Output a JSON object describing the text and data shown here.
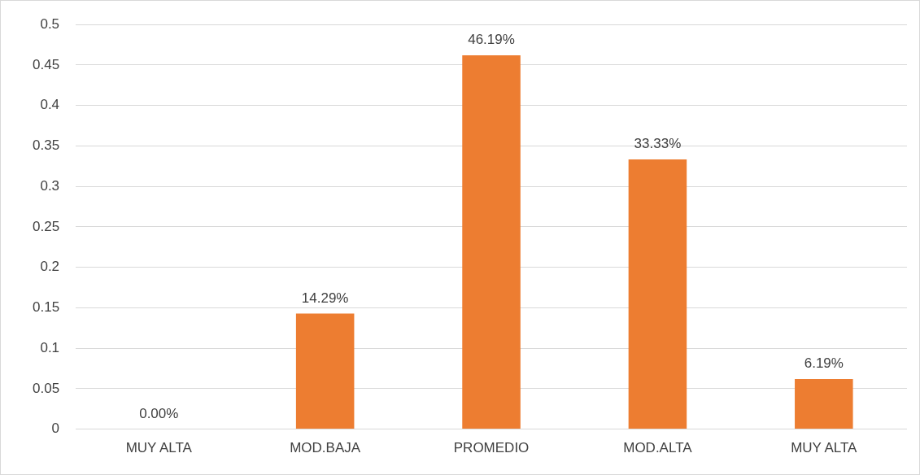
{
  "chart_data": {
    "type": "bar",
    "categories": [
      "MUY ALTA",
      "MOD.BAJA",
      "PROMEDIO",
      "MOD.ALTA",
      "MUY ALTA"
    ],
    "values": [
      0,
      0.1429,
      0.4619,
      0.3333,
      0.0619
    ],
    "value_labels": [
      "0.00%",
      "14.29%",
      "46.19%",
      "33.33%",
      "6.19%"
    ],
    "color": "#ed7d31",
    "ylim": [
      0,
      0.5
    ],
    "yticks": [
      0,
      0.05,
      0.1,
      0.15,
      0.2,
      0.25,
      0.3,
      0.35,
      0.4,
      0.45,
      0.5
    ],
    "grid": "y",
    "legend": false
  }
}
